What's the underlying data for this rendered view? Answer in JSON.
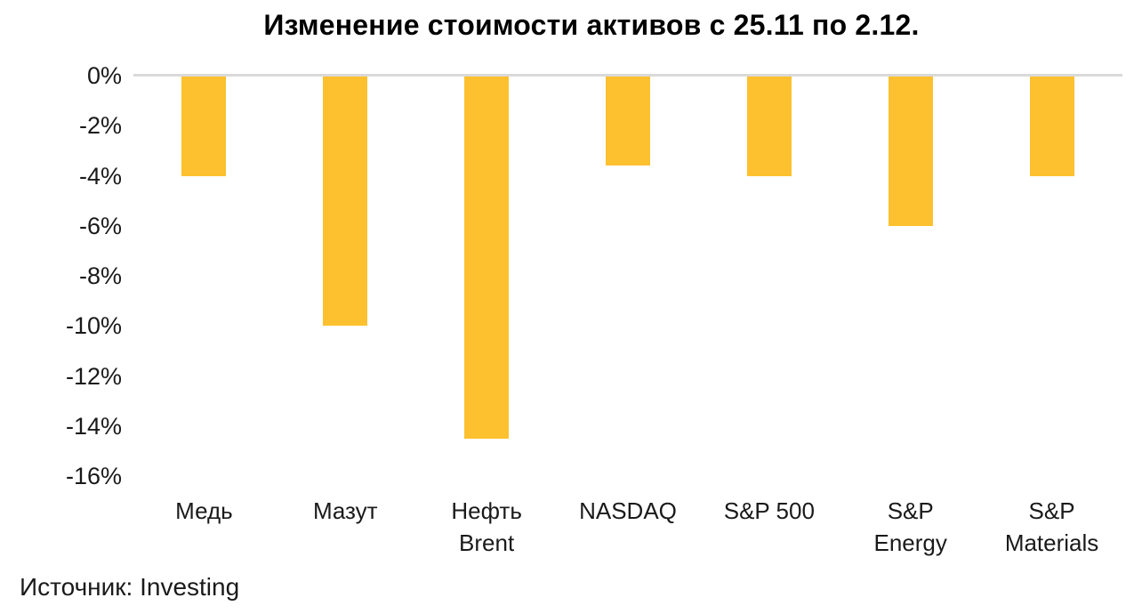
{
  "title": "Изменение стоимости активов с 25.11 по 2.12.",
  "source_label": "Источник: Investing",
  "colors": {
    "background": "#FFFFFF",
    "bar": "#FDC12F",
    "zero_line": "#D9D9D9",
    "title_text": "#000000",
    "axis_text": "#1A1A1A"
  },
  "chart_data": {
    "type": "bar",
    "title": "Изменение стоимости активов с 25.11 по 2.12.",
    "categories": [
      "Медь",
      "Мазут",
      "Нефть Brent",
      "NASDAQ",
      "S&P 500",
      "S&P Energy",
      "S&P Materials"
    ],
    "category_display_lines": [
      [
        "Медь"
      ],
      [
        "Мазут"
      ],
      [
        "Нефть",
        "Brent"
      ],
      [
        "NASDAQ"
      ],
      [
        "S&P 500"
      ],
      [
        "S&P",
        "Energy"
      ],
      [
        "S&P",
        "Materials"
      ]
    ],
    "values": [
      -4.0,
      -10.0,
      -14.5,
      -3.6,
      -4.0,
      -6.0,
      -4.0
    ],
    "unit": "%",
    "xlabel": "",
    "ylabel": "",
    "ylim": [
      0,
      -16
    ],
    "ytick_interval": 2,
    "yticks": [
      "0%",
      "-2%",
      "-4%",
      "-6%",
      "-8%",
      "-10%",
      "-12%",
      "-14%",
      "-16%"
    ],
    "grid": false,
    "legend": false,
    "bar_color": "#FDC12F",
    "annotation": "Источник: Investing"
  }
}
